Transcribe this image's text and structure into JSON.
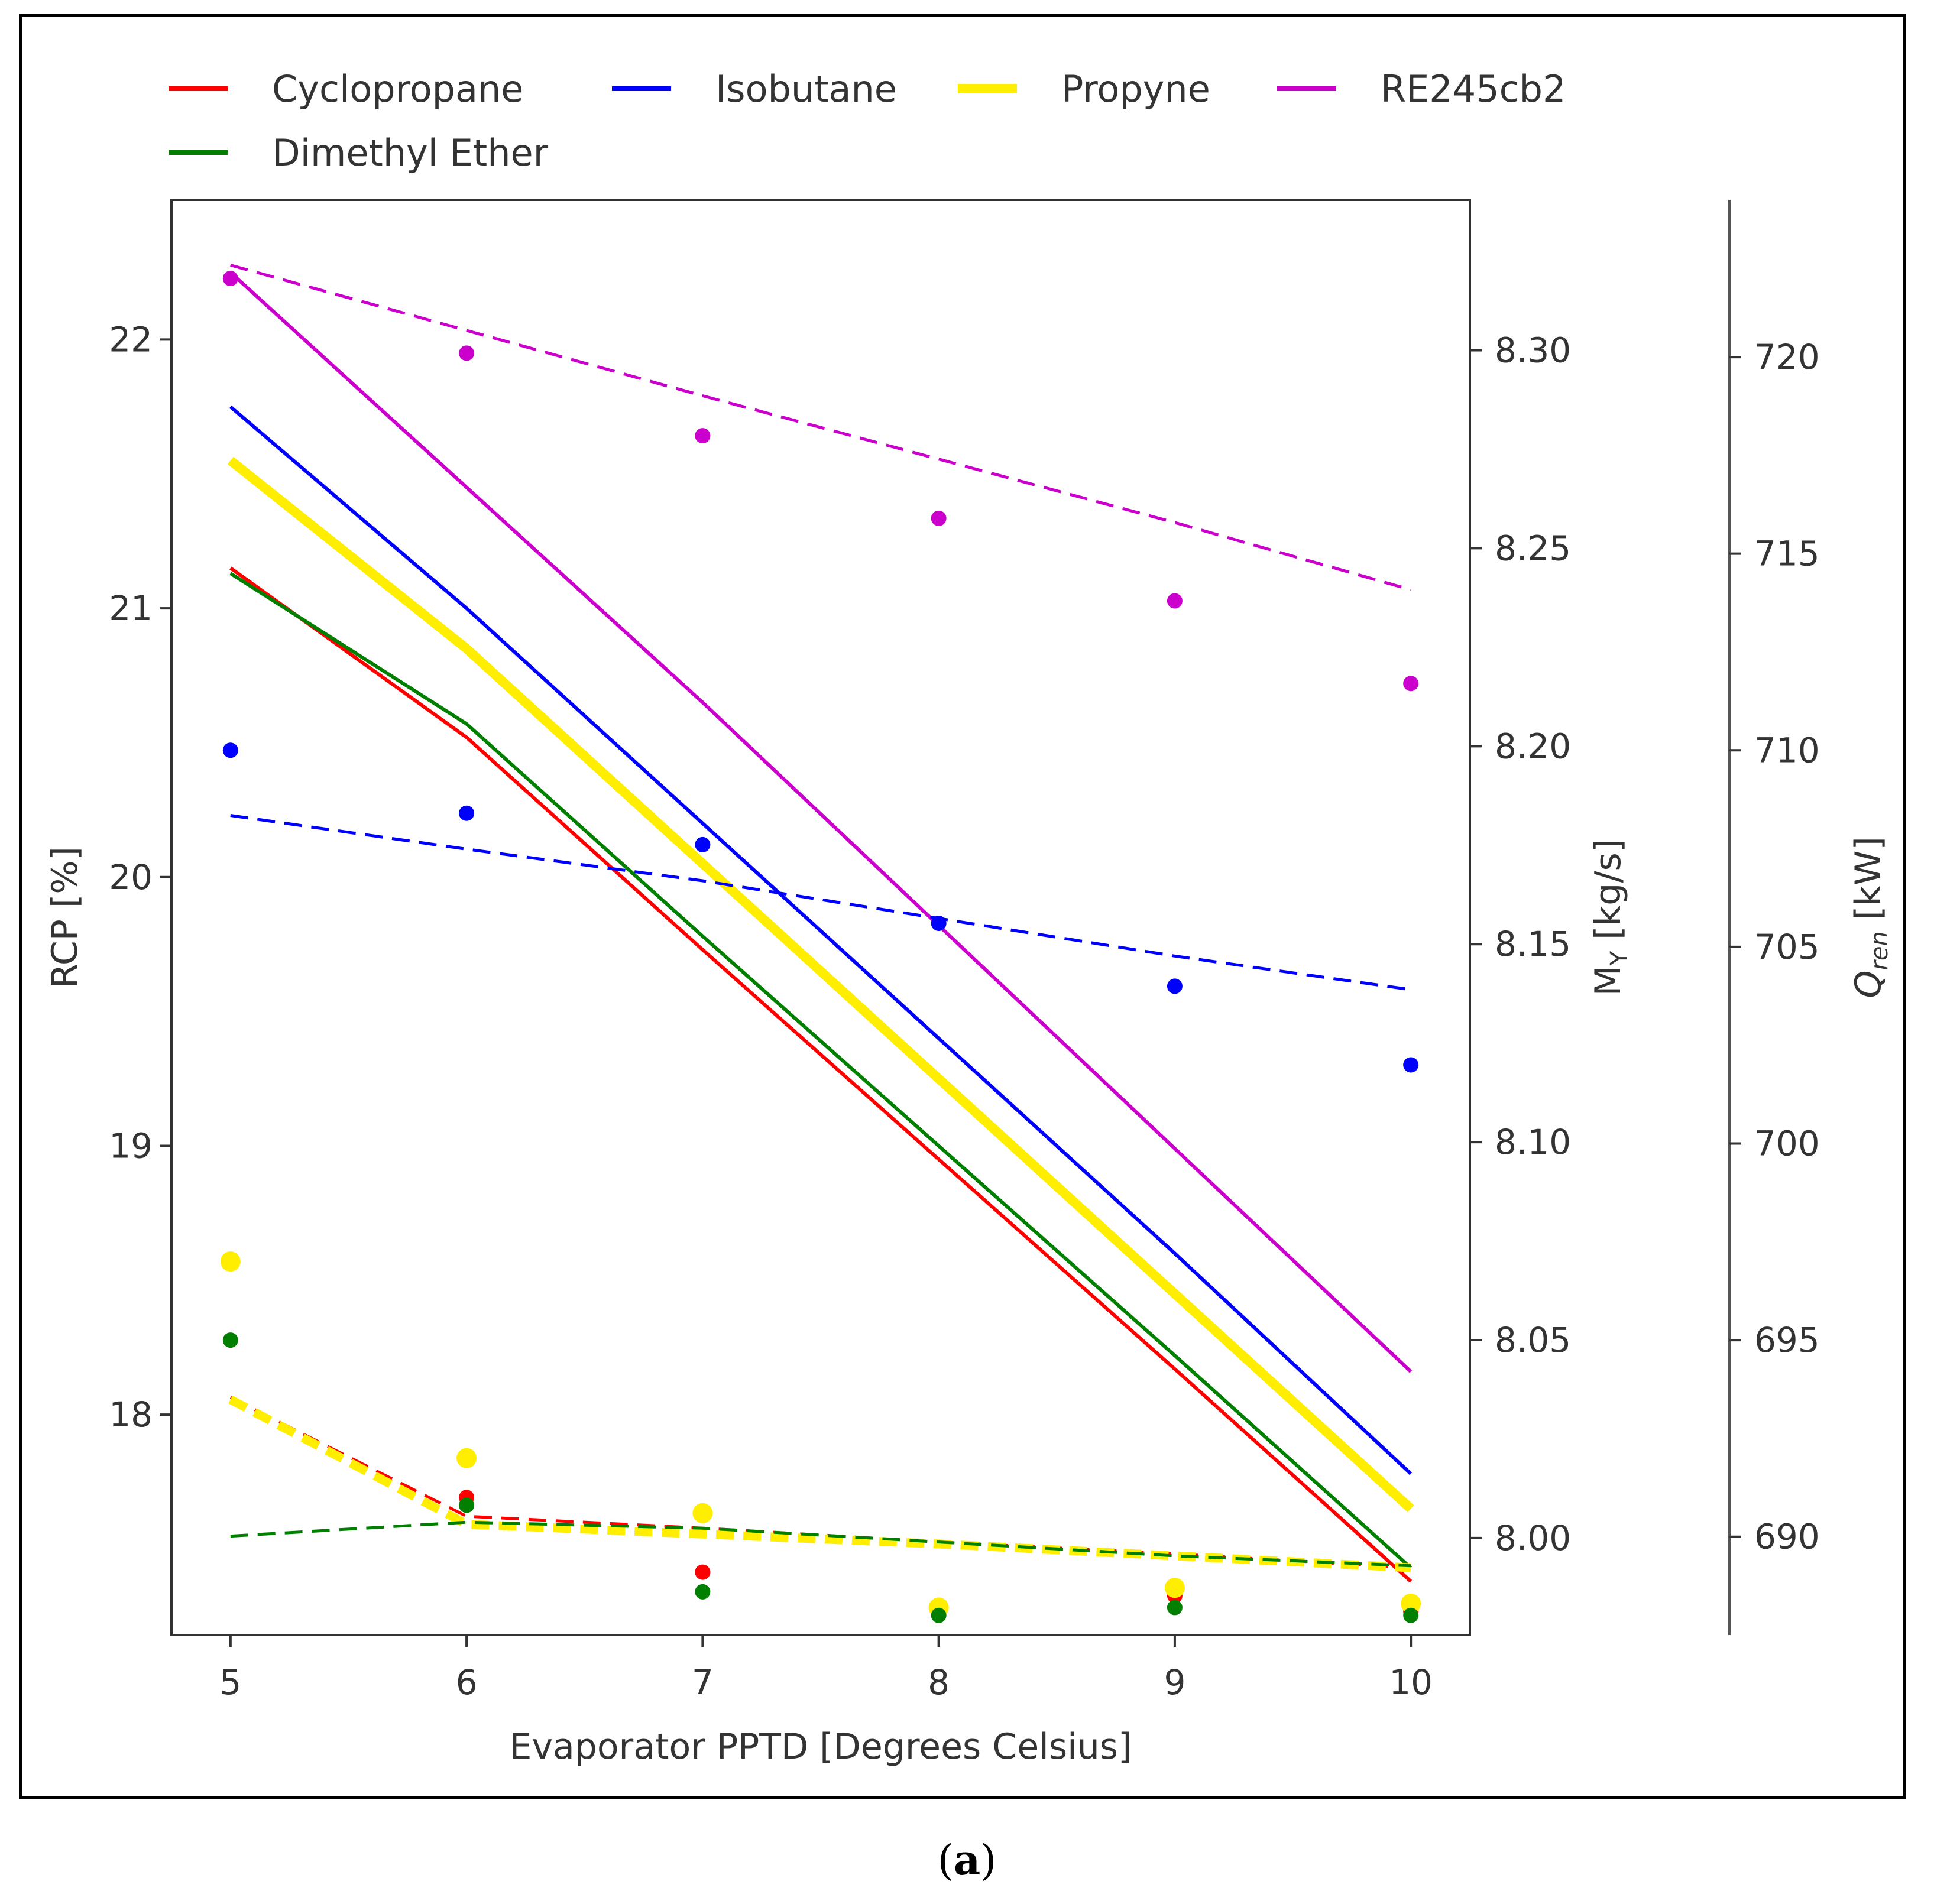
{
  "caption": {
    "open": "(",
    "letter": "a",
    "close": ")"
  },
  "chart_data": {
    "type": "line",
    "xlabel": "Evaporator PPTD [Degrees Celsius]",
    "ylabel_left": "RCP [%]",
    "ylabel_right1": "M_Y [kg/s]",
    "ylabel_right1_main": "M",
    "ylabel_right1_sub": "Y",
    "ylabel_right1_unit": " [kg/s]",
    "ylabel_right2_main": "Q",
    "ylabel_right2_sub": "ren",
    "ylabel_right2_unit": " [kW]",
    "xlim": [
      4.75,
      10.25
    ],
    "ylim_left": [
      17.18,
      22.52
    ],
    "ylim_right1": [
      7.9755,
      8.338
    ],
    "ylim_right2": [
      687.5,
      724.0
    ],
    "x_ticks": [
      5,
      6,
      7,
      8,
      9,
      10
    ],
    "y_left_ticks": [
      18,
      19,
      20,
      21,
      22
    ],
    "y_right1_ticks": [
      "8.00",
      "8.05",
      "8.10",
      "8.15",
      "8.20",
      "8.25",
      "8.30"
    ],
    "y_right2_ticks": [
      690,
      695,
      700,
      705,
      710,
      715,
      720
    ],
    "x": [
      5,
      6,
      7,
      8,
      9,
      10
    ],
    "legend": {
      "placement": "top",
      "entries": [
        "Cyclopropane",
        "Isobutane",
        "Propyne",
        "RE245cb2",
        "Dimethyl Ether"
      ]
    },
    "series": [
      {
        "name": "Cyclopropane",
        "color": "#ff0000",
        "rcp": [
          21.15,
          20.52,
          19.73,
          18.95,
          18.17,
          17.38
        ],
        "mass_flow": [
          8.0355,
          8.0055,
          8.0025,
          7.999,
          7.996,
          7.9925
        ],
        "q_ren": [
          697.0,
          691.0,
          689.1,
          688.1,
          688.5,
          688.1
        ]
      },
      {
        "name": "Isobutane",
        "color": "#0000ff",
        "rcp": [
          21.75,
          21.0,
          20.2,
          19.4,
          18.6,
          17.78
        ],
        "mass_flow": [
          8.1825,
          8.174,
          8.166,
          8.1565,
          8.147,
          8.1385
        ],
        "q_ren": [
          710.0,
          708.4,
          707.6,
          705.6,
          704.0,
          702.0
        ]
      },
      {
        "name": "Propyne",
        "color": "#ffee00",
        "rcp": [
          21.55,
          20.85,
          20.05,
          19.25,
          18.45,
          17.65
        ],
        "mass_flow": [
          8.035,
          8.0035,
          8.001,
          7.9985,
          7.9955,
          7.9925
        ],
        "q_ren": [
          697.0,
          692.0,
          690.6,
          688.2,
          688.7,
          688.3
        ]
      },
      {
        "name": "RE245cb2",
        "color": "#cc00cc",
        "rcp": [
          22.25,
          21.45,
          20.65,
          19.82,
          18.99,
          18.16
        ],
        "mass_flow": [
          8.3215,
          8.305,
          8.2885,
          8.2725,
          8.2565,
          8.2395
        ],
        "q_ren": [
          722.0,
          720.1,
          718.0,
          715.9,
          713.8,
          711.7
        ]
      },
      {
        "name": "Dimethyl Ether",
        "color": "#007f00",
        "rcp": [
          21.13,
          20.57,
          19.78,
          19.0,
          18.22,
          17.43
        ],
        "mass_flow": [
          8.0005,
          8.004,
          8.0025,
          7.999,
          7.9955,
          7.993
        ],
        "q_ren": [
          695.0,
          690.8,
          688.6,
          688.0,
          688.2,
          688.0
        ]
      }
    ]
  }
}
